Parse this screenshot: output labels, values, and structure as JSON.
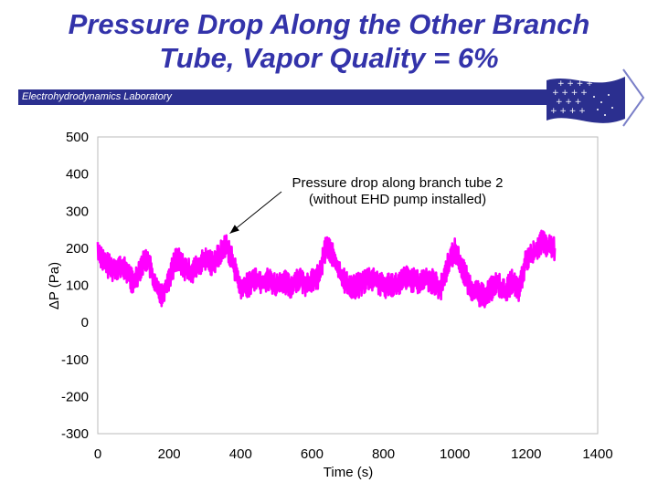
{
  "slide": {
    "title_line1": "Pressure Drop Along the Other Branch",
    "title_line2": "Tube, Vapor Quality = 6%",
    "lab_name": "Electrohydrodynamics Laboratory",
    "logo_icon": "ehd-lab-logo-icon"
  },
  "colors": {
    "title": "#3333aa",
    "banner": "#2b2f8f",
    "series": "#ff00ff"
  },
  "chart_data": {
    "type": "line",
    "title": "",
    "xlabel": "Time (s)",
    "ylabel": "ΔP (Pa)",
    "xlim": [
      0,
      1400
    ],
    "ylim": [
      -300,
      500
    ],
    "x_ticks": [
      0,
      200,
      400,
      600,
      800,
      1000,
      1200,
      1400
    ],
    "y_ticks": [
      500,
      400,
      300,
      200,
      100,
      0,
      -100,
      -200,
      -300
    ],
    "grid": false,
    "annotation": {
      "text_line1": "Pressure drop along branch tube 2",
      "text_line2": "(without EHD pump installed)",
      "points_to": {
        "x": 370,
        "y": 240
      }
    },
    "series": [
      {
        "name": "",
        "color": "#ff00ff",
        "x": [
          0,
          20,
          40,
          60,
          80,
          100,
          120,
          140,
          160,
          180,
          200,
          220,
          240,
          260,
          280,
          300,
          320,
          340,
          360,
          380,
          400,
          420,
          440,
          460,
          480,
          500,
          520,
          540,
          560,
          580,
          600,
          620,
          640,
          660,
          680,
          700,
          720,
          740,
          760,
          780,
          800,
          820,
          840,
          860,
          880,
          900,
          920,
          940,
          960,
          980,
          1000,
          1020,
          1040,
          1060,
          1080,
          1100,
          1120,
          1140,
          1160,
          1180,
          1200,
          1220,
          1240,
          1260,
          1280
        ],
        "y": [
          195,
          160,
          145,
          150,
          140,
          105,
          150,
          175,
          100,
          75,
          120,
          175,
          150,
          135,
          150,
          170,
          160,
          180,
          210,
          160,
          90,
          100,
          120,
          110,
          115,
          100,
          110,
          95,
          120,
          105,
          110,
          125,
          210,
          175,
          130,
          100,
          95,
          105,
          120,
          115,
          95,
          105,
          100,
          120,
          115,
          105,
          120,
          110,
          90,
          155,
          195,
          150,
          100,
          80,
          70,
          90,
          105,
          80,
          110,
          85,
          170,
          185,
          215,
          205,
          200
        ]
      }
    ]
  }
}
